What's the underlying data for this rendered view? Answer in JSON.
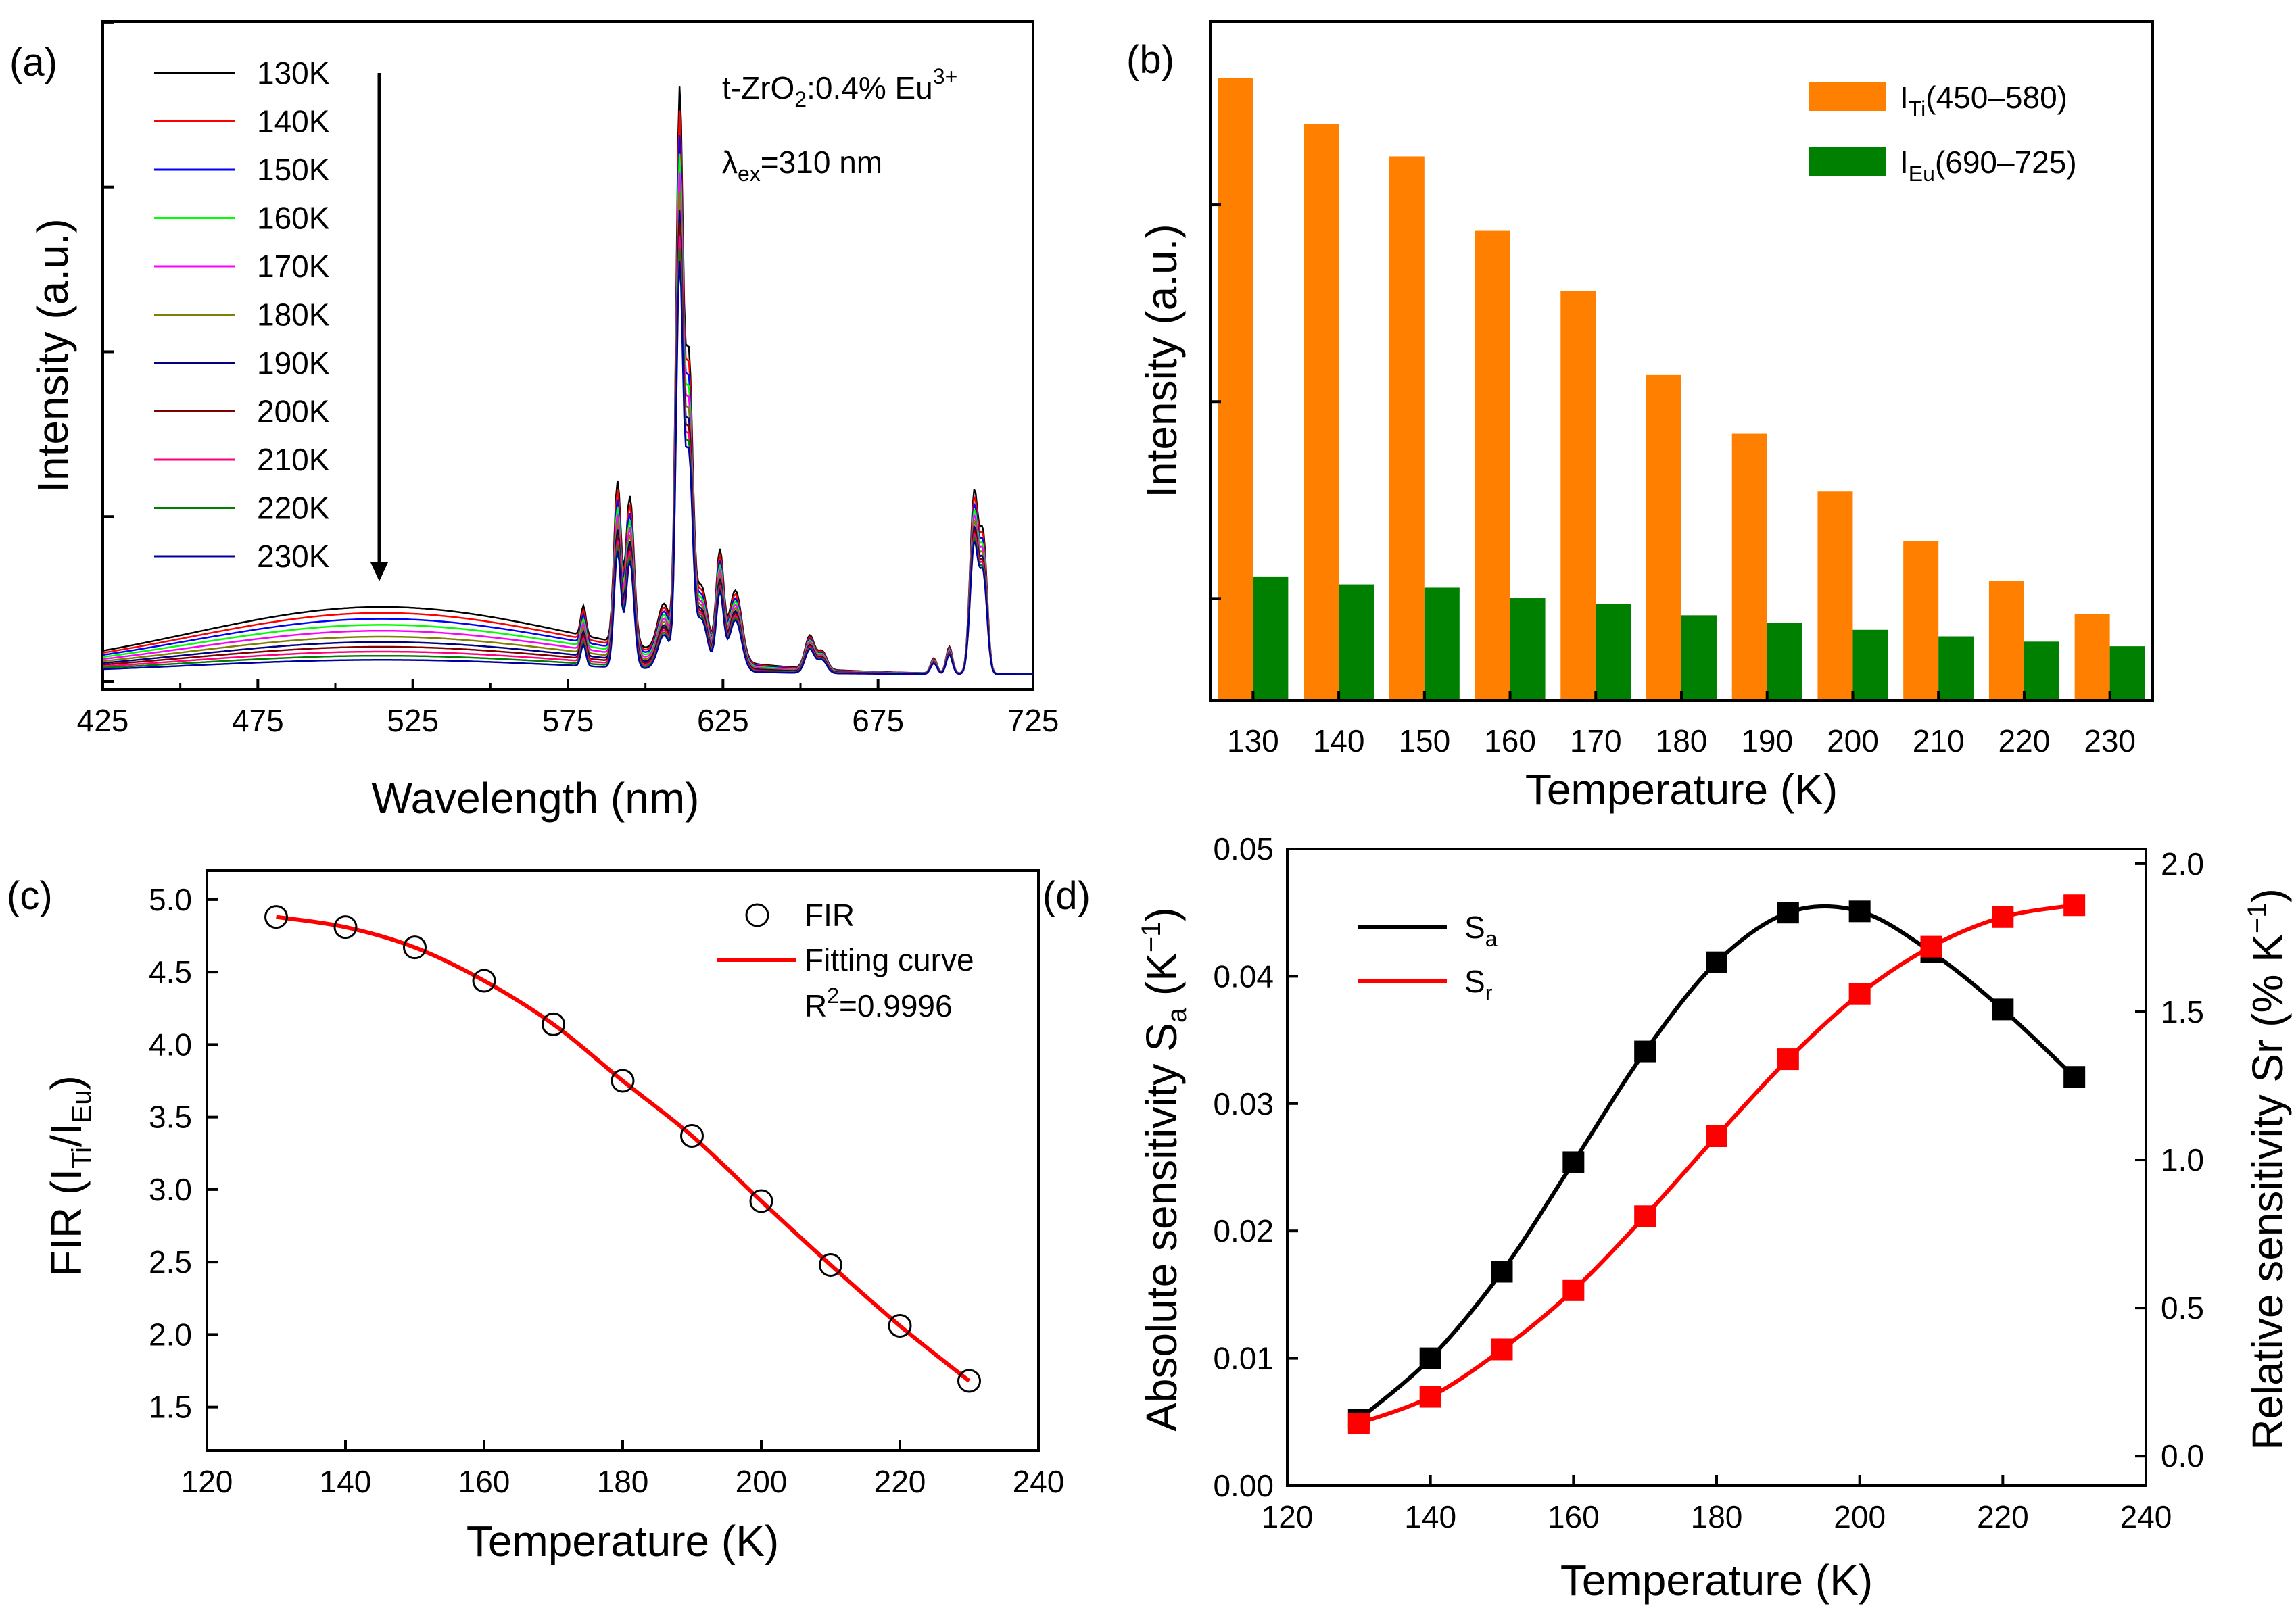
{
  "chart_data": [
    {
      "panel": "(a)",
      "type": "line",
      "xlabel": "Wavelength (nm)",
      "ylabel": "Intensity (a.u.)",
      "xlim": [
        425,
        725
      ],
      "ylim": [
        0,
        1.0
      ],
      "xticks": [
        425,
        475,
        525,
        575,
        625,
        675,
        725
      ],
      "annotation": {
        "compound": "t-ZrO",
        "compound_sub": "2",
        "doping": ":0.4% Eu",
        "doping_sup": "3+",
        "lambda": "λ",
        "lambda_sub": "ex",
        "excitation": "=310 nm"
      },
      "broad_band": {
        "center": 515,
        "width": 62
      },
      "peaks": [
        {
          "wl": 580,
          "amp": 0.05,
          "w": 0.8
        },
        {
          "wl": 591,
          "amp": 0.27,
          "w": 1.1
        },
        {
          "wl": 595,
          "amp": 0.25,
          "w": 1.3
        },
        {
          "wl": 606,
          "amp": 0.08,
          "w": 2.0
        },
        {
          "wl": 611,
          "amp": 0.93,
          "w": 1.1
        },
        {
          "wl": 614,
          "amp": 0.48,
          "w": 1.2
        },
        {
          "wl": 618,
          "amp": 0.12,
          "w": 2.0
        },
        {
          "wl": 624,
          "amp": 0.18,
          "w": 1.2
        },
        {
          "wl": 629,
          "amp": 0.12,
          "w": 2.0
        },
        {
          "wl": 653,
          "amp": 0.055,
          "w": 1.5
        },
        {
          "wl": 657,
          "amp": 0.03,
          "w": 1.5
        },
        {
          "wl": 693,
          "amp": 0.025,
          "w": 1.0
        },
        {
          "wl": 698,
          "amp": 0.045,
          "w": 1.0
        },
        {
          "wl": 706,
          "amp": 0.3,
          "w": 1.3
        },
        {
          "wl": 709,
          "amp": 0.22,
          "w": 1.2
        }
      ],
      "series": [
        {
          "name": "130K",
          "color": "#000000",
          "band": 0.113,
          "peak_scale": 1.0
        },
        {
          "name": "140K",
          "color": "#ff0000",
          "band": 0.103,
          "peak_scale": 0.96
        },
        {
          "name": "150K",
          "color": "#0000ff",
          "band": 0.093,
          "peak_scale": 0.92
        },
        {
          "name": "160K",
          "color": "#00ff00",
          "band": 0.083,
          "peak_scale": 0.89
        },
        {
          "name": "170K",
          "color": "#ff00ff",
          "band": 0.073,
          "peak_scale": 0.86
        },
        {
          "name": "180K",
          "color": "#808000",
          "band": 0.063,
          "peak_scale": 0.83
        },
        {
          "name": "190K",
          "color": "#000080",
          "band": 0.054,
          "peak_scale": 0.8
        },
        {
          "name": "200K",
          "color": "#800000",
          "band": 0.046,
          "peak_scale": 0.78
        },
        {
          "name": "210K",
          "color": "#ff0080",
          "band": 0.038,
          "peak_scale": 0.76
        },
        {
          "name": "220K",
          "color": "#008000",
          "band": 0.031,
          "peak_scale": 0.74
        },
        {
          "name": "230K",
          "color": "#0000a0",
          "band": 0.024,
          "peak_scale": 0.72
        }
      ]
    },
    {
      "panel": "(b)",
      "type": "bar",
      "xlabel": "Temperature (K)",
      "ylabel": "Intensity (a.u.)",
      "categories": [
        "130",
        "140",
        "150",
        "160",
        "170",
        "180",
        "190",
        "200",
        "210",
        "220",
        "230"
      ],
      "ylim": [
        0,
        1.0
      ],
      "series": [
        {
          "name": "I",
          "sub": "Ti",
          "range": "(450–580)",
          "color": "#ff8000",
          "values": [
            0.945,
            0.875,
            0.826,
            0.713,
            0.622,
            0.494,
            0.405,
            0.317,
            0.242,
            0.181,
            0.131
          ]
        },
        {
          "name": "I",
          "sub": "Eu",
          "range": "(690–725)",
          "color": "#008000",
          "values": [
            0.188,
            0.176,
            0.171,
            0.155,
            0.146,
            0.129,
            0.118,
            0.107,
            0.097,
            0.089,
            0.082
          ]
        }
      ]
    },
    {
      "panel": "(c)",
      "type": "scatter",
      "xlabel": "Temperature (K)",
      "ylabel": "FIR (I",
      "ylabel_sub1": "Ti",
      "ylabel_mid": "/I",
      "ylabel_sub2": "Eu",
      "ylabel_end": ")",
      "xlim": [
        120,
        240
      ],
      "ylim": [
        1.2,
        5.2
      ],
      "xticks": [
        120,
        140,
        160,
        180,
        200,
        220,
        240
      ],
      "yticks": [
        "1.5",
        "2.0",
        "2.5",
        "3.0",
        "3.5",
        "4.0",
        "4.5",
        "5.0"
      ],
      "x": [
        130,
        140,
        150,
        160,
        170,
        180,
        190,
        200,
        210,
        220,
        230
      ],
      "y": [
        4.88,
        4.81,
        4.67,
        4.44,
        4.14,
        3.75,
        3.37,
        2.92,
        2.48,
        2.06,
        1.68
      ],
      "fit": {
        "a": 2.78,
        "b": 2.1
      },
      "legend": [
        {
          "label": "FIR",
          "marker": "circle",
          "color": "#000000"
        },
        {
          "label": "Fitting curve",
          "marker": "line",
          "color": "#ff0000"
        }
      ],
      "r2_label": "R",
      "r2_sup": "2",
      "r2_value": "=0.9996"
    },
    {
      "panel": "(d)",
      "type": "line",
      "xlabel": "Temperature (K)",
      "ylabel_left": "Absolute sensitivity S",
      "ylabel_left_sub": "a",
      "ylabel_left_unit": " (K",
      "ylabel_left_sup": "−1",
      "ylabel_left_end": ")",
      "ylabel_right": "Relative sensitivity Sr (% K",
      "ylabel_right_sup": "−1",
      "ylabel_right_end": ")",
      "xlim": [
        120,
        240
      ],
      "ylim_left": [
        0,
        0.05
      ],
      "ylim_right": [
        -0.1,
        2.05
      ],
      "xticks": [
        120,
        140,
        160,
        180,
        200,
        220,
        240
      ],
      "yticks_left": [
        "0.00",
        "0.01",
        "0.02",
        "0.03",
        "0.04",
        "0.05"
      ],
      "yticks_right": [
        "0.0",
        "0.5",
        "1.0",
        "1.5",
        "2.0"
      ],
      "x": [
        130,
        140,
        150,
        160,
        170,
        180,
        190,
        200,
        210,
        220,
        230
      ],
      "series": [
        {
          "name": "S",
          "sub": "a",
          "color": "#000000",
          "axis": "left",
          "values": [
            0.0052,
            0.01,
            0.0168,
            0.0254,
            0.0341,
            0.0411,
            0.045,
            0.0451,
            0.0419,
            0.0374,
            0.0321
          ]
        },
        {
          "name": "S",
          "sub": "r",
          "color": "#ff0000",
          "axis": "right",
          "values": [
            0.11,
            0.2,
            0.36,
            0.56,
            0.81,
            1.08,
            1.34,
            1.56,
            1.72,
            1.82,
            1.86
          ]
        }
      ]
    }
  ]
}
